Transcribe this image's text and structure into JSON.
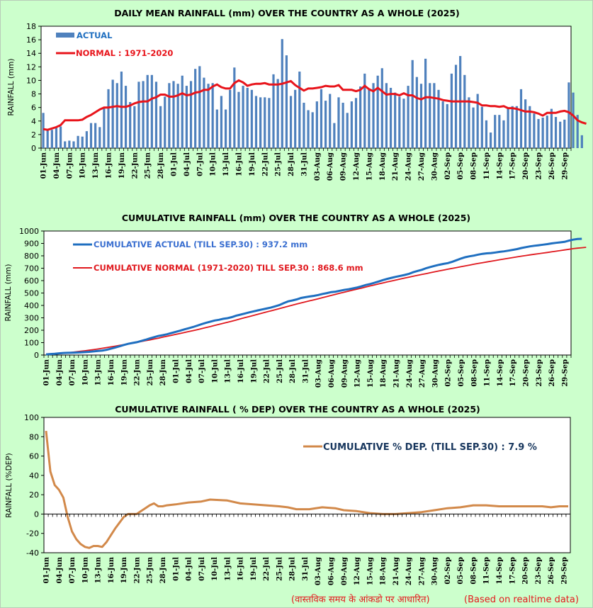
{
  "colors": {
    "background": "#ccffcc",
    "actual_bar": "#4f81bd",
    "normal_line": "#e8141b",
    "cum_actual_line": "#1f6fc0",
    "cum_normal_line": "#e0181e",
    "dep_line": "#d2894a",
    "dep_legend_text": "#17365d",
    "footer_text": "#e41a1c"
  },
  "footer": {
    "hindi": "(वास्तविक समय के आंकडो पर आधारित)",
    "english": "(Based on realtime data)"
  },
  "chart_data": [
    {
      "type": "bar",
      "title": "DAILY MEAN RAINFALL (mm) OVER THE COUNTRY AS A WHOLE  (2025)",
      "xlabel": "",
      "ylabel": "RAINFALL  (mm)",
      "ylim": [
        0,
        18
      ],
      "yticks": [
        "0",
        "2",
        "4",
        "6",
        "8",
        "10",
        "12",
        "14",
        "16",
        "18"
      ],
      "xtick_labels": [
        "01-Jun",
        "04-Jun",
        "07-Jun",
        "10-Jun",
        "13-Jun",
        "16-Jun",
        "19-Jun",
        "22-Jun",
        "25-Jun",
        "28-Jun",
        "01-Jul",
        "04-Jul",
        "07-Jul",
        "10-Jul",
        "13-Jul",
        "16-Jul",
        "19-Jul",
        "22-Jul",
        "25-Jul",
        "28-Jul",
        "31-Jul",
        "03-Aug",
        "06-Aug",
        "09-Aug",
        "12-Aug",
        "15-Aug",
        "18-Aug",
        "21-Aug",
        "24-Aug",
        "27-Aug",
        "30-Aug",
        "02-Sep",
        "05-Sep",
        "08-Sep",
        "11-Sep",
        "14-Sep",
        "17-Sep",
        "20-Sep",
        "23-Sep",
        "26-Sep",
        "29-Sep"
      ],
      "days": 122,
      "legend": {
        "actual": "ACTUAL",
        "normal": "NORMAL : 1971-2020",
        "position": "top-left"
      },
      "series": [
        {
          "name": "ACTUAL",
          "type": "bar",
          "values": [
            5.2,
            2.7,
            2.7,
            3.1,
            3.2,
            1.0,
            1.1,
            1.0,
            1.8,
            1.7,
            2.5,
            3.7,
            3.7,
            3.1,
            6.0,
            8.7,
            10.1,
            9.6,
            11.3,
            9.2,
            6.8,
            6.2,
            9.8,
            9.9,
            10.8,
            10.8,
            9.8,
            6.2,
            7.6,
            9.6,
            9.9,
            9.5,
            10.7,
            9.2,
            9.9,
            11.7,
            12.1,
            10.4,
            9.5,
            9.6,
            5.7,
            7.7,
            5.7,
            8.6,
            11.9,
            8.3,
            9.2,
            8.9,
            8.6,
            7.7,
            7.5,
            7.5,
            7.4,
            10.9,
            10.2,
            16.1,
            13.7,
            7.7,
            8.6,
            11.3,
            6.7,
            5.6,
            5.3,
            6.9,
            8.7,
            7.0,
            8.0,
            3.7,
            7.5,
            6.7,
            5.2,
            6.9,
            7.4,
            9.1,
            11.0,
            8.6,
            9.6,
            10.7,
            11.8,
            9.6,
            8.9,
            8.2,
            7.6,
            7.3,
            9.2,
            13.0,
            10.5,
            9.5,
            13.2,
            9.6,
            9.6,
            8.6,
            6.9,
            6.5,
            11.0,
            12.3,
            13.6,
            10.8,
            7.5,
            6.0,
            8.0,
            6.1,
            4.1,
            2.3,
            4.9,
            4.9,
            4.1,
            5.9,
            6.2,
            6.2,
            8.7,
            7.2,
            6.2,
            5.1,
            4.3,
            4.5,
            4.8,
            5.8,
            4.6,
            3.9,
            4.2,
            9.7,
            8.2,
            4.9,
            1.9
          ]
        },
        {
          "name": "NORMAL : 1971-2020",
          "type": "line",
          "values": [
            2.8,
            2.7,
            2.9,
            3.1,
            3.4,
            4.1,
            4.1,
            4.1,
            4.1,
            4.2,
            4.6,
            4.9,
            5.3,
            5.7,
            6.0,
            6.0,
            6.1,
            6.2,
            6.1,
            6.1,
            6.3,
            6.6,
            6.8,
            6.9,
            6.9,
            7.3,
            7.5,
            7.9,
            7.9,
            7.6,
            7.6,
            7.8,
            8.1,
            7.8,
            7.9,
            8.2,
            8.3,
            8.6,
            8.6,
            9.1,
            9.4,
            9.0,
            8.8,
            8.8,
            9.6,
            10.0,
            9.7,
            9.2,
            9.4,
            9.5,
            9.5,
            9.6,
            9.4,
            9.4,
            9.4,
            9.5,
            9.7,
            9.9,
            9.3,
            8.9,
            8.5,
            8.8,
            8.8,
            8.9,
            9.0,
            9.2,
            9.1,
            9.1,
            9.3,
            8.6,
            8.6,
            8.6,
            8.4,
            8.6,
            9.2,
            8.7,
            8.4,
            8.9,
            8.4,
            7.9,
            8.0,
            8.0,
            7.8,
            8.1,
            7.8,
            7.8,
            7.4,
            7.2,
            7.5,
            7.5,
            7.4,
            7.3,
            7.1,
            7.0,
            6.9,
            6.9,
            6.9,
            6.9,
            6.9,
            6.8,
            6.7,
            6.3,
            6.3,
            6.2,
            6.2,
            6.1,
            6.2,
            5.9,
            5.9,
            5.8,
            5.6,
            5.4,
            5.4,
            5.3,
            5.1,
            4.8,
            5.2,
            5.2,
            5.2,
            5.4,
            5.5,
            5.3,
            4.8,
            4.1,
            3.8,
            3.6
          ]
        }
      ]
    },
    {
      "type": "line",
      "title": "CUMULATIVE  RAINFALL (mm) OVER THE COUNTRY AS A WHOLE  (2025)",
      "xlabel": "",
      "ylabel": "RAINFALL  (mm)",
      "ylim": [
        0,
        1000
      ],
      "yticks": [
        "0",
        "100",
        "200",
        "300",
        "400",
        "500",
        "600",
        "700",
        "800",
        "900",
        "1000"
      ],
      "xtick_labels": [
        "01-Jun",
        "04-Jun",
        "07-Jun",
        "10-Jun",
        "13-Jun",
        "16-Jun",
        "19-Jun",
        "22-Jun",
        "25-Jun",
        "28-Jun",
        "01-Jul",
        "04-Jul",
        "07-Jul",
        "10-Jul",
        "13-Jul",
        "16-Jul",
        "19-Jul",
        "22-Jul",
        "25-Jul",
        "28-Jul",
        "31-Jul",
        "03-Aug",
        "06-Aug",
        "09-Aug",
        "12-Aug",
        "15-Aug",
        "18-Aug",
        "21-Aug",
        "24-Aug",
        "27-Aug",
        "30-Aug",
        "02-Sep",
        "05-Sep",
        "08-Sep",
        "11-Sep",
        "14-Sep",
        "17-Sep",
        "20-Sep",
        "23-Sep",
        "26-Sep",
        "29-Sep"
      ],
      "days": 122,
      "legend": {
        "actual": "CUMULATIVE ACTUAL (TILL SEP.30) : 937.2 mm",
        "normal": "CUMULATIVE NORMAL (1971-2020) TILL SEP.30 : 868.6 mm",
        "position": "top-left"
      },
      "series": [
        {
          "name": "CUMULATIVE ACTUAL",
          "final": 937.2
        },
        {
          "name": "CUMULATIVE NORMAL",
          "final": 868.6
        }
      ]
    },
    {
      "type": "line",
      "title": "CUMULATIVE RAINFALL ( % DEP) OVER THE COUNTRY AS A WHOLE (2025)",
      "xlabel": "",
      "ylabel": "RAINFALL  (%DEP)",
      "ylim": [
        -40,
        100
      ],
      "yticks": [
        "-40",
        "-20",
        "0",
        "20",
        "40",
        "60",
        "80",
        "100"
      ],
      "xtick_labels": [
        "01-Jun",
        "04-Jun",
        "07-Jun",
        "10-Jun",
        "13-Jun",
        "16-Jun",
        "19-Jun",
        "22-Jun",
        "25-Jun",
        "28-Jun",
        "01-Jul",
        "04-Jul",
        "07-Jul",
        "10-Jul",
        "13-Jul",
        "16-Jul",
        "19-Jul",
        "22-Jul",
        "25-Jul",
        "28-Jul",
        "31-Jul",
        "03-Aug",
        "06-Aug",
        "09-Aug",
        "12-Aug",
        "15-Aug",
        "18-Aug",
        "21-Aug",
        "24-Aug",
        "27-Aug",
        "30-Aug",
        "02-Sep",
        "05-Sep",
        "08-Sep",
        "11-Sep",
        "14-Sep",
        "17-Sep",
        "20-Sep",
        "23-Sep",
        "26-Sep",
        "29-Sep"
      ],
      "legend": {
        "label": "CUMULATIVE % DEP.  (TILL  SEP.30) : 7.9 %",
        "position": "top-right"
      },
      "series": [
        {
          "name": "CUMULATIVE % DEP.",
          "day_index": [
            0,
            1,
            2,
            3,
            4,
            5,
            6,
            7,
            8,
            9,
            10,
            11,
            12,
            13,
            14,
            15,
            16,
            17,
            18,
            19,
            20,
            21,
            22,
            23,
            24,
            25,
            26,
            27,
            28,
            30,
            33,
            36,
            38,
            42,
            45,
            48,
            51,
            54,
            56,
            58,
            61,
            64,
            67,
            69,
            72,
            75,
            78,
            81,
            84,
            87,
            90,
            93,
            96,
            99,
            102,
            105,
            110,
            115,
            117,
            119,
            121
          ],
          "values": [
            86,
            44,
            30,
            25,
            17,
            -3,
            -18,
            -26,
            -31,
            -34,
            -35,
            -33,
            -33,
            -34,
            -29,
            -22,
            -15,
            -9,
            -3,
            0,
            0,
            0,
            3,
            6,
            9,
            11,
            8,
            8,
            9,
            10,
            12,
            13,
            15,
            14,
            11,
            10,
            9,
            8,
            7,
            5,
            5,
            7,
            6,
            4,
            3,
            1,
            0,
            0,
            1,
            2,
            4,
            6,
            7,
            9,
            9,
            8,
            8,
            8,
            7,
            8,
            8
          ]
        }
      ]
    }
  ]
}
